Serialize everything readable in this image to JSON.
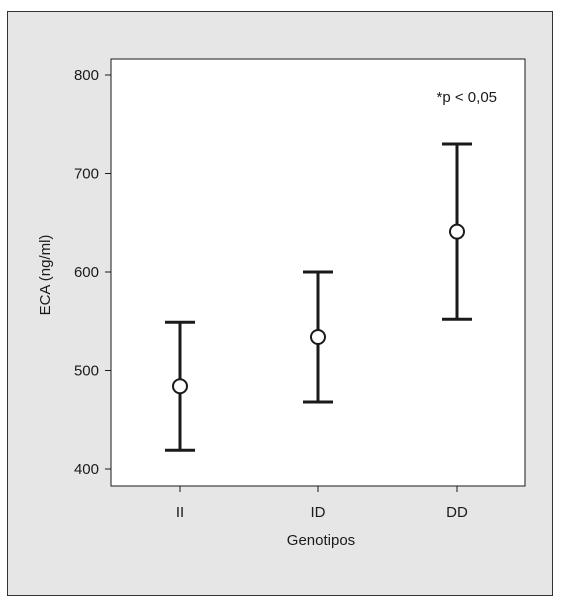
{
  "chart_data": {
    "type": "scatter",
    "subtype": "mean-with-error-bars",
    "xlabel": "Genotipos",
    "ylabel": "ECA (ng/ml)",
    "categories": [
      "II",
      "ID",
      "DD"
    ],
    "series": [
      {
        "mean": [
          484,
          534,
          641
        ],
        "lower": [
          419,
          468,
          552
        ],
        "upper": [
          549,
          600,
          730
        ]
      }
    ],
    "ylim": [
      400,
      800
    ],
    "yticks": [
      400,
      500,
      600,
      700,
      800
    ],
    "ytick_labels": [
      "400",
      "500",
      "600",
      "700",
      "800"
    ],
    "annotation": "*p < 0,05",
    "grid": false,
    "colors": {
      "background": "#e6e6e6",
      "plot_area": "#ffffff",
      "marks": "#1a1a1a"
    }
  }
}
